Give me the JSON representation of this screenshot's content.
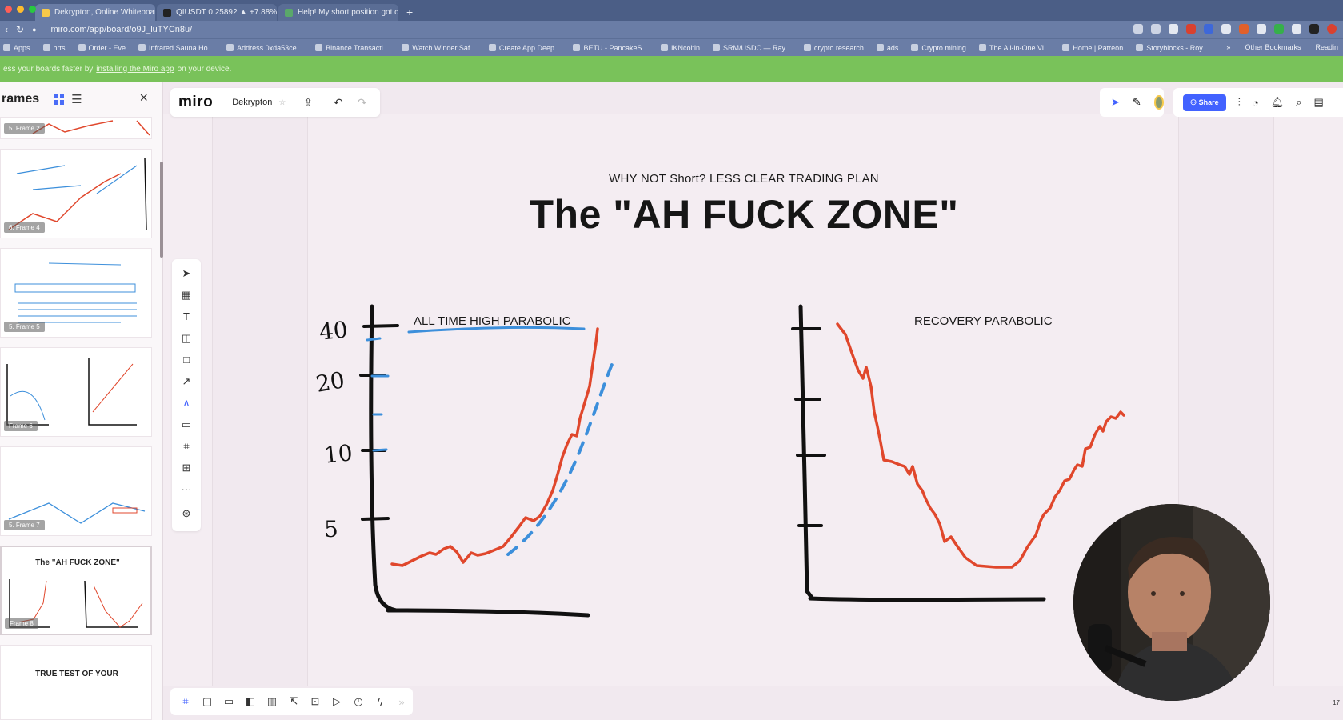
{
  "browser": {
    "tabs": [
      {
        "label": "Dekrypton, Online Whiteboard",
        "close": "×"
      },
      {
        "label": "QIUSDT 0.25892 ▲ +7.88% ir",
        "close": "×"
      },
      {
        "label": "Help! My short position got cr",
        "close": "×"
      }
    ],
    "new_tab": "+",
    "url": "miro.com/app/board/o9J_luTYCn8u/",
    "bookmarks": [
      "Apps",
      "hrts",
      "Order - Eve",
      "Infrared Sauna Ho...",
      "Address 0xda53ce...",
      "Binance Transacti...",
      "Watch Winder Saf...",
      "Create App Deep...",
      "BETU - PancakeS...",
      "IKNcoltin",
      "SRM/USDC — Ray...",
      "crypto research",
      "ads",
      "Crypto mining",
      "The All-in-One Vi...",
      "Home | Patreon",
      "Storyblocks - Roy..."
    ],
    "bookmarks_right": [
      "»",
      "Other Bookmarks",
      "Readin"
    ]
  },
  "banner": {
    "prefix": "ess your boards faster by",
    "link": "installing the Miro app",
    "suffix": "on your device."
  },
  "frames_panel": {
    "title": "rames",
    "close": "×",
    "thumbnails": [
      {
        "label": "5. Frame 2",
        "title": ""
      },
      {
        "label": "6. Frame 4",
        "title": ""
      },
      {
        "label": "5. Frame 5",
        "title": ""
      },
      {
        "label": "Frame 6",
        "title": ""
      },
      {
        "label": "5. Frame 7",
        "title": ""
      },
      {
        "label": "Frame 8",
        "title": "The \"AH FUCK ZONE\""
      },
      {
        "label": "",
        "title": "TRUE TEST OF YOUR"
      }
    ]
  },
  "toolbar": {
    "logo": "miro",
    "board_name": "Dekrypton",
    "star": "☆",
    "share_label": "Share"
  },
  "zoom": "17",
  "board": {
    "subtitle": "WHY NOT Short? LESS CLEAR TRADING PLAN",
    "title": "The \"AH FUCK ZONE\"",
    "left_chart_label": "ALL TIME HIGH PARABOLIC",
    "right_chart_label": "RECOVERY PARABOLIC",
    "left_axis_ticks": [
      "40",
      "20",
      "10",
      "5"
    ]
  },
  "colors": {
    "accent_blue": "#4262ff",
    "banner_green": "#79c25a",
    "red_line": "#e0472c",
    "blue_line": "#3c8fdb"
  }
}
